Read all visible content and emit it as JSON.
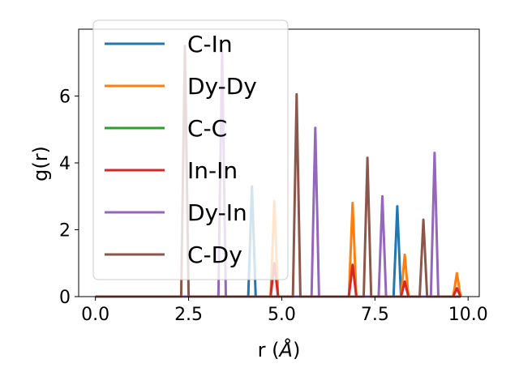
{
  "chart_data": {
    "type": "line",
    "xlabel_prefix": "r (",
    "xlabel_unit": "Å",
    "xlabel_suffix": ")",
    "ylabel": "g(r)",
    "xlim": [
      -0.45,
      10.3
    ],
    "ylim": [
      0,
      8.0
    ],
    "xticks": [
      0.0,
      2.5,
      5.0,
      7.5,
      10.0
    ],
    "xtick_labels": [
      "0.0",
      "2.5",
      "5.0",
      "7.5",
      "10.0"
    ],
    "yticks": [
      0,
      2,
      4,
      6
    ],
    "ytick_labels": [
      "0",
      "2",
      "4",
      "6"
    ],
    "grid": false,
    "legend_position": "upper-left",
    "x_start": 0.0,
    "x_end": 9.8,
    "peak_half_width": 0.1,
    "series": [
      {
        "name": "C-In",
        "color": "#1f77b4",
        "peaks": [
          [
            4.2,
            3.3
          ],
          [
            8.1,
            2.7
          ]
        ]
      },
      {
        "name": "Dy-Dy",
        "color": "#ff7f0e",
        "peaks": [
          [
            4.8,
            2.85
          ],
          [
            6.9,
            2.8
          ],
          [
            8.3,
            1.25
          ],
          [
            9.7,
            0.7
          ]
        ]
      },
      {
        "name": "C-C",
        "color": "#2ca02c",
        "peaks": []
      },
      {
        "name": "In-In",
        "color": "#d62728",
        "peaks": [
          [
            4.8,
            1.0
          ],
          [
            6.9,
            0.95
          ],
          [
            8.3,
            0.45
          ],
          [
            9.7,
            0.25
          ]
        ]
      },
      {
        "name": "Dy-In",
        "color": "#9467bd",
        "peaks": [
          [
            3.4,
            7.4
          ],
          [
            5.9,
            5.05
          ],
          [
            7.7,
            3.0
          ],
          [
            9.1,
            4.3
          ]
        ]
      },
      {
        "name": "C-Dy",
        "color": "#8c564b",
        "peaks": [
          [
            2.4,
            7.5
          ],
          [
            5.4,
            6.05
          ],
          [
            7.3,
            4.15
          ],
          [
            8.8,
            2.3
          ]
        ]
      }
    ]
  }
}
